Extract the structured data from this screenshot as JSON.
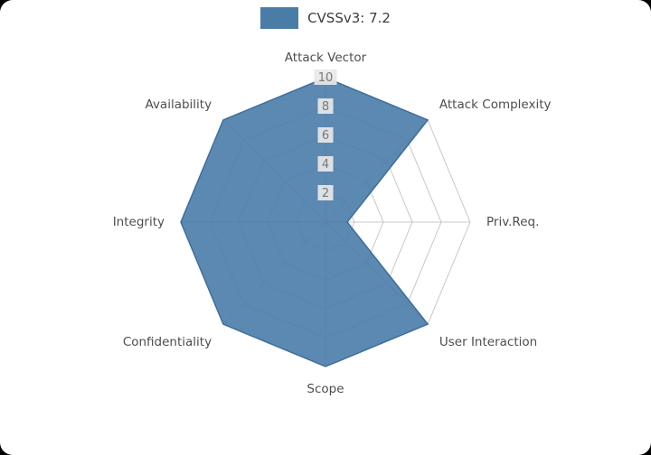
{
  "legend": {
    "label": "CVSSv3: 7.2",
    "swatch_color": "#4a7ca8"
  },
  "chart_data": {
    "type": "radar",
    "categories": [
      "Attack Vector",
      "Attack Complexity",
      "Priv.Req.",
      "User Interaction",
      "Scope",
      "Confidentiality",
      "Integrity",
      "Availability"
    ],
    "series": [
      {
        "name": "CVSSv3: 7.2",
        "values": [
          10,
          10,
          1.5,
          10,
          10,
          10,
          10,
          10
        ]
      }
    ],
    "rlim": [
      0,
      10
    ],
    "rticks": [
      2,
      4,
      6,
      8,
      10
    ],
    "grid": true,
    "legend_position": "top-center",
    "fill_color": "#4a7ca8",
    "stroke_color": "#3f6e9e",
    "grid_color": "#c8c8c8",
    "tick_label_color": "#787878",
    "tick_box_color": "#e8e8e8",
    "axis_label_color": "#4d4d4d"
  }
}
